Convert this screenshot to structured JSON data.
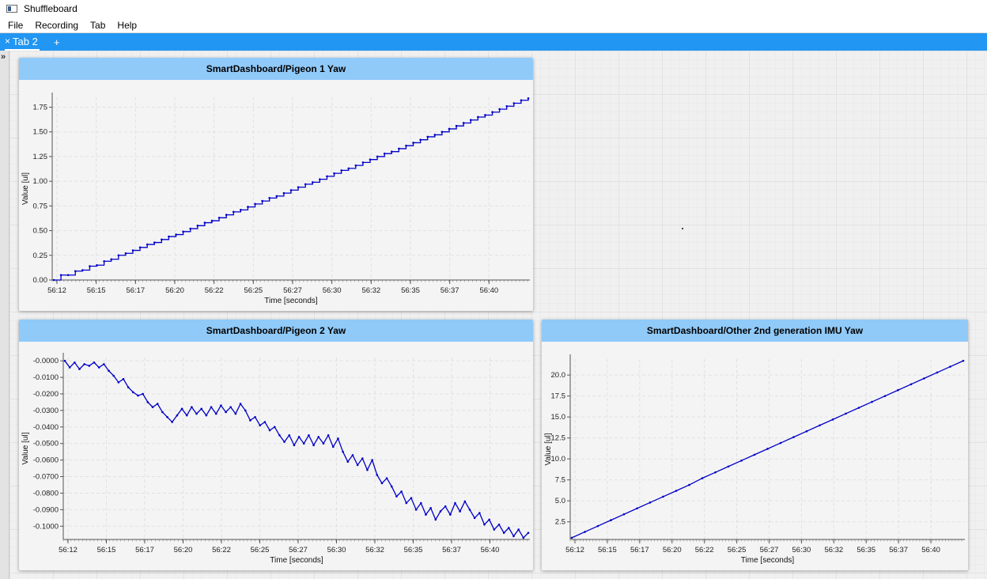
{
  "window": {
    "title": "Shuffleboard"
  },
  "menu": {
    "items": [
      "File",
      "Recording",
      "Tab",
      "Help"
    ]
  },
  "tabs": {
    "items": [
      {
        "label": "Tab 2"
      }
    ],
    "add_label": "+",
    "close_glyph": "×"
  },
  "sidebar": {
    "toggle_glyph": "»"
  },
  "colors": {
    "tab_bar": "#2196f3",
    "widget_header": "#90caf9",
    "line": "#0000c8"
  },
  "widgets": [
    {
      "title": "SmartDashboard/Pigeon 1 Yaw"
    },
    {
      "title": "SmartDashboard/Pigeon 2 Yaw"
    },
    {
      "title": "SmartDashboard/Other 2nd generation IMU Yaw"
    }
  ],
  "chart_data": [
    {
      "type": "line",
      "title": "SmartDashboard/Pigeon 1 Yaw",
      "xlabel": "Time [seconds]",
      "ylabel": "Value [ul]",
      "x_tick_labels": [
        "56:12",
        "56:15",
        "56:17",
        "56:20",
        "56:22",
        "56:25",
        "56:27",
        "56:30",
        "56:32",
        "56:35",
        "56:37",
        "56:40"
      ],
      "y_tick_labels": [
        "0.00",
        "0.25",
        "0.50",
        "0.75",
        "1.00",
        "1.25",
        "1.50",
        "1.75"
      ],
      "ylim": [
        0,
        1.85
      ],
      "grid": true,
      "series": [
        {
          "values": [
            0.0,
            0.05,
            0.05,
            0.09,
            0.1,
            0.14,
            0.15,
            0.19,
            0.21,
            0.25,
            0.27,
            0.3,
            0.33,
            0.36,
            0.38,
            0.41,
            0.44,
            0.46,
            0.49,
            0.52,
            0.55,
            0.58,
            0.6,
            0.63,
            0.66,
            0.69,
            0.71,
            0.74,
            0.77,
            0.8,
            0.83,
            0.85,
            0.88,
            0.91,
            0.94,
            0.97,
            0.99,
            1.02,
            1.05,
            1.08,
            1.11,
            1.13,
            1.16,
            1.19,
            1.22,
            1.25,
            1.28,
            1.3,
            1.33,
            1.36,
            1.39,
            1.42,
            1.45,
            1.47,
            1.5,
            1.53,
            1.56,
            1.59,
            1.62,
            1.65,
            1.67,
            1.7,
            1.73,
            1.76,
            1.79,
            1.82,
            1.84
          ]
        }
      ]
    },
    {
      "type": "line",
      "title": "SmartDashboard/Pigeon 2 Yaw",
      "xlabel": "Time [seconds]",
      "ylabel": "Value [ul]",
      "x_tick_labels": [
        "56:12",
        "56:15",
        "56:17",
        "56:20",
        "56:22",
        "56:25",
        "56:27",
        "56:30",
        "56:32",
        "56:35",
        "56:37",
        "56:40"
      ],
      "y_tick_labels": [
        "-0.0000",
        "-0.0100",
        "-0.0200",
        "-0.0300",
        "-0.0400",
        "-0.0500",
        "-0.0600",
        "-0.0700",
        "-0.0800",
        "-0.0900",
        "-0.1000"
      ],
      "ylim": [
        -0.108,
        0.002
      ],
      "grid": true,
      "series": [
        {
          "values": [
            -0.0,
            -0.004,
            -0.001,
            -0.005,
            -0.002,
            -0.003,
            -0.001,
            -0.004,
            -0.002,
            -0.006,
            -0.009,
            -0.013,
            -0.011,
            -0.016,
            -0.019,
            -0.021,
            -0.02,
            -0.025,
            -0.028,
            -0.026,
            -0.031,
            -0.034,
            -0.037,
            -0.033,
            -0.029,
            -0.033,
            -0.028,
            -0.032,
            -0.029,
            -0.033,
            -0.028,
            -0.032,
            -0.027,
            -0.031,
            -0.028,
            -0.032,
            -0.026,
            -0.03,
            -0.036,
            -0.034,
            -0.039,
            -0.037,
            -0.042,
            -0.04,
            -0.045,
            -0.049,
            -0.045,
            -0.051,
            -0.046,
            -0.05,
            -0.045,
            -0.051,
            -0.046,
            -0.05,
            -0.045,
            -0.052,
            -0.047,
            -0.055,
            -0.061,
            -0.057,
            -0.063,
            -0.059,
            -0.066,
            -0.06,
            -0.069,
            -0.074,
            -0.071,
            -0.076,
            -0.082,
            -0.079,
            -0.086,
            -0.083,
            -0.09,
            -0.086,
            -0.093,
            -0.089,
            -0.096,
            -0.091,
            -0.088,
            -0.093,
            -0.086,
            -0.091,
            -0.085,
            -0.09,
            -0.095,
            -0.092,
            -0.099,
            -0.096,
            -0.102,
            -0.099,
            -0.104,
            -0.101,
            -0.106,
            -0.102,
            -0.107,
            -0.104
          ]
        }
      ]
    },
    {
      "type": "line",
      "title": "SmartDashboard/Other 2nd generation IMU Yaw",
      "xlabel": "Time [seconds]",
      "ylabel": "Value [ul]",
      "x_tick_labels": [
        "56:12",
        "56:15",
        "56:17",
        "56:20",
        "56:22",
        "56:25",
        "56:27",
        "56:30",
        "56:32",
        "56:35",
        "56:37",
        "56:40"
      ],
      "y_tick_labels": [
        "2.5",
        "5.0",
        "7.5",
        "10.0",
        "12.5",
        "15.0",
        "17.5",
        "20.0"
      ],
      "ylim": [
        0.4,
        21.9
      ],
      "grid": true,
      "series": [
        {
          "values": [
            0.6,
            1.3,
            2.0,
            2.7,
            3.4,
            4.1,
            4.8,
            5.5,
            6.2,
            6.9,
            7.7,
            8.4,
            9.1,
            9.8,
            10.5,
            11.2,
            11.9,
            12.6,
            13.3,
            14.0,
            14.7,
            15.4,
            16.1,
            16.8,
            17.5,
            18.2,
            18.9,
            19.6,
            20.3,
            21.0,
            21.7
          ]
        }
      ]
    }
  ]
}
